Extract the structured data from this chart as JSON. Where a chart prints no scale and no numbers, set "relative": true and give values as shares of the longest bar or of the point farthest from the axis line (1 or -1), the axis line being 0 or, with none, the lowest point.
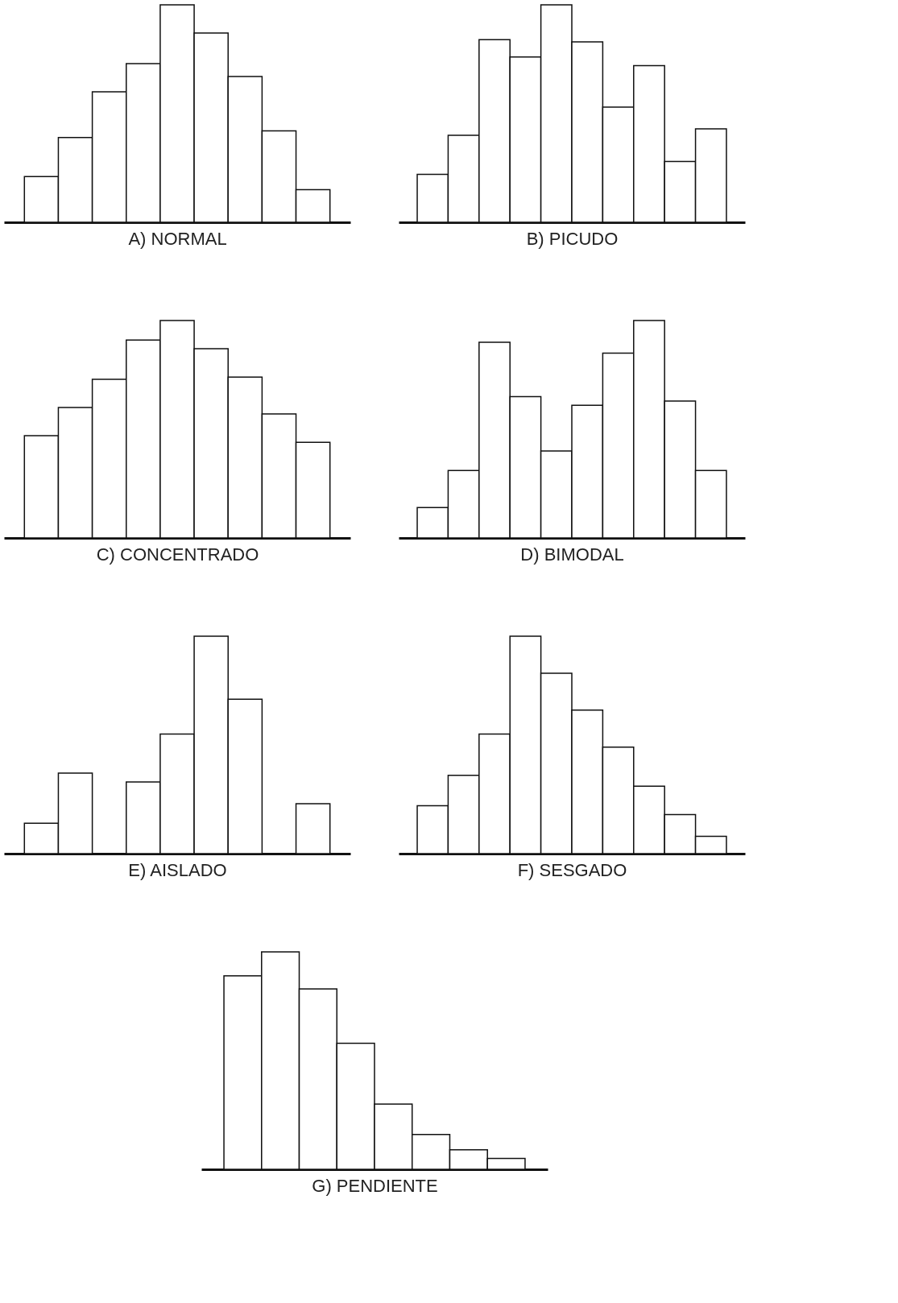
{
  "chart_data": [
    {
      "type": "bar",
      "title": "A) NORMAL",
      "relative": true,
      "tick_labels": false,
      "color": "#ffffff",
      "categories": [
        null,
        null,
        null,
        null,
        null,
        null,
        null,
        null,
        null
      ],
      "values": [
        0.21,
        0.39,
        0.6,
        0.73,
        1,
        0.87,
        0.67,
        0.42,
        0.15
      ]
    },
    {
      "type": "bar",
      "title": "B) PICUDO",
      "relative": true,
      "tick_labels": false,
      "color": "#ffffff",
      "categories": [
        null,
        null,
        null,
        null,
        null,
        null,
        null,
        null,
        null,
        null
      ],
      "values": [
        0.22,
        0.4,
        0.84,
        0.76,
        1,
        0.83,
        0.53,
        0.72,
        0.28,
        0.43
      ]
    },
    {
      "type": "bar",
      "title": "C) CONCENTRADO",
      "relative": true,
      "tick_labels": false,
      "color": "#ffffff",
      "categories": [
        null,
        null,
        null,
        null,
        null,
        null,
        null,
        null,
        null
      ],
      "values": [
        0.47,
        0.6,
        0.73,
        0.91,
        1,
        0.87,
        0.74,
        0.57,
        0.44
      ]
    },
    {
      "type": "bar",
      "title": "D) BIMODAL",
      "relative": true,
      "tick_labels": false,
      "color": "#ffffff",
      "categories": [
        null,
        null,
        null,
        null,
        null,
        null,
        null,
        null,
        null,
        null
      ],
      "values": [
        0.14,
        0.31,
        0.9,
        0.65,
        0.4,
        0.61,
        0.85,
        1,
        0.63,
        0.31
      ]
    },
    {
      "type": "bar",
      "title": "E) AISLADO",
      "relative": true,
      "tick_labels": false,
      "color": "#ffffff",
      "categories": [
        null,
        null,
        null,
        null,
        null,
        null,
        null,
        null,
        null
      ],
      "values": [
        0.14,
        0.37,
        null,
        0.33,
        0.55,
        1,
        0.71,
        null,
        0.23
      ]
    },
    {
      "type": "bar",
      "title": "F) SESGADO",
      "relative": true,
      "tick_labels": false,
      "color": "#ffffff",
      "categories": [
        null,
        null,
        null,
        null,
        null,
        null,
        null,
        null,
        null,
        null
      ],
      "values": [
        0.22,
        0.36,
        0.55,
        1,
        0.83,
        0.66,
        0.49,
        0.31,
        0.18,
        0.08
      ]
    },
    {
      "type": "bar",
      "title": "G) PENDIENTE",
      "relative": true,
      "tick_labels": false,
      "color": "#ffffff",
      "categories": [
        null,
        null,
        null,
        null,
        null,
        null,
        null,
        null
      ],
      "values": [
        0.89,
        1,
        0.83,
        0.58,
        0.3,
        0.16,
        0.09,
        0.05
      ]
    }
  ]
}
